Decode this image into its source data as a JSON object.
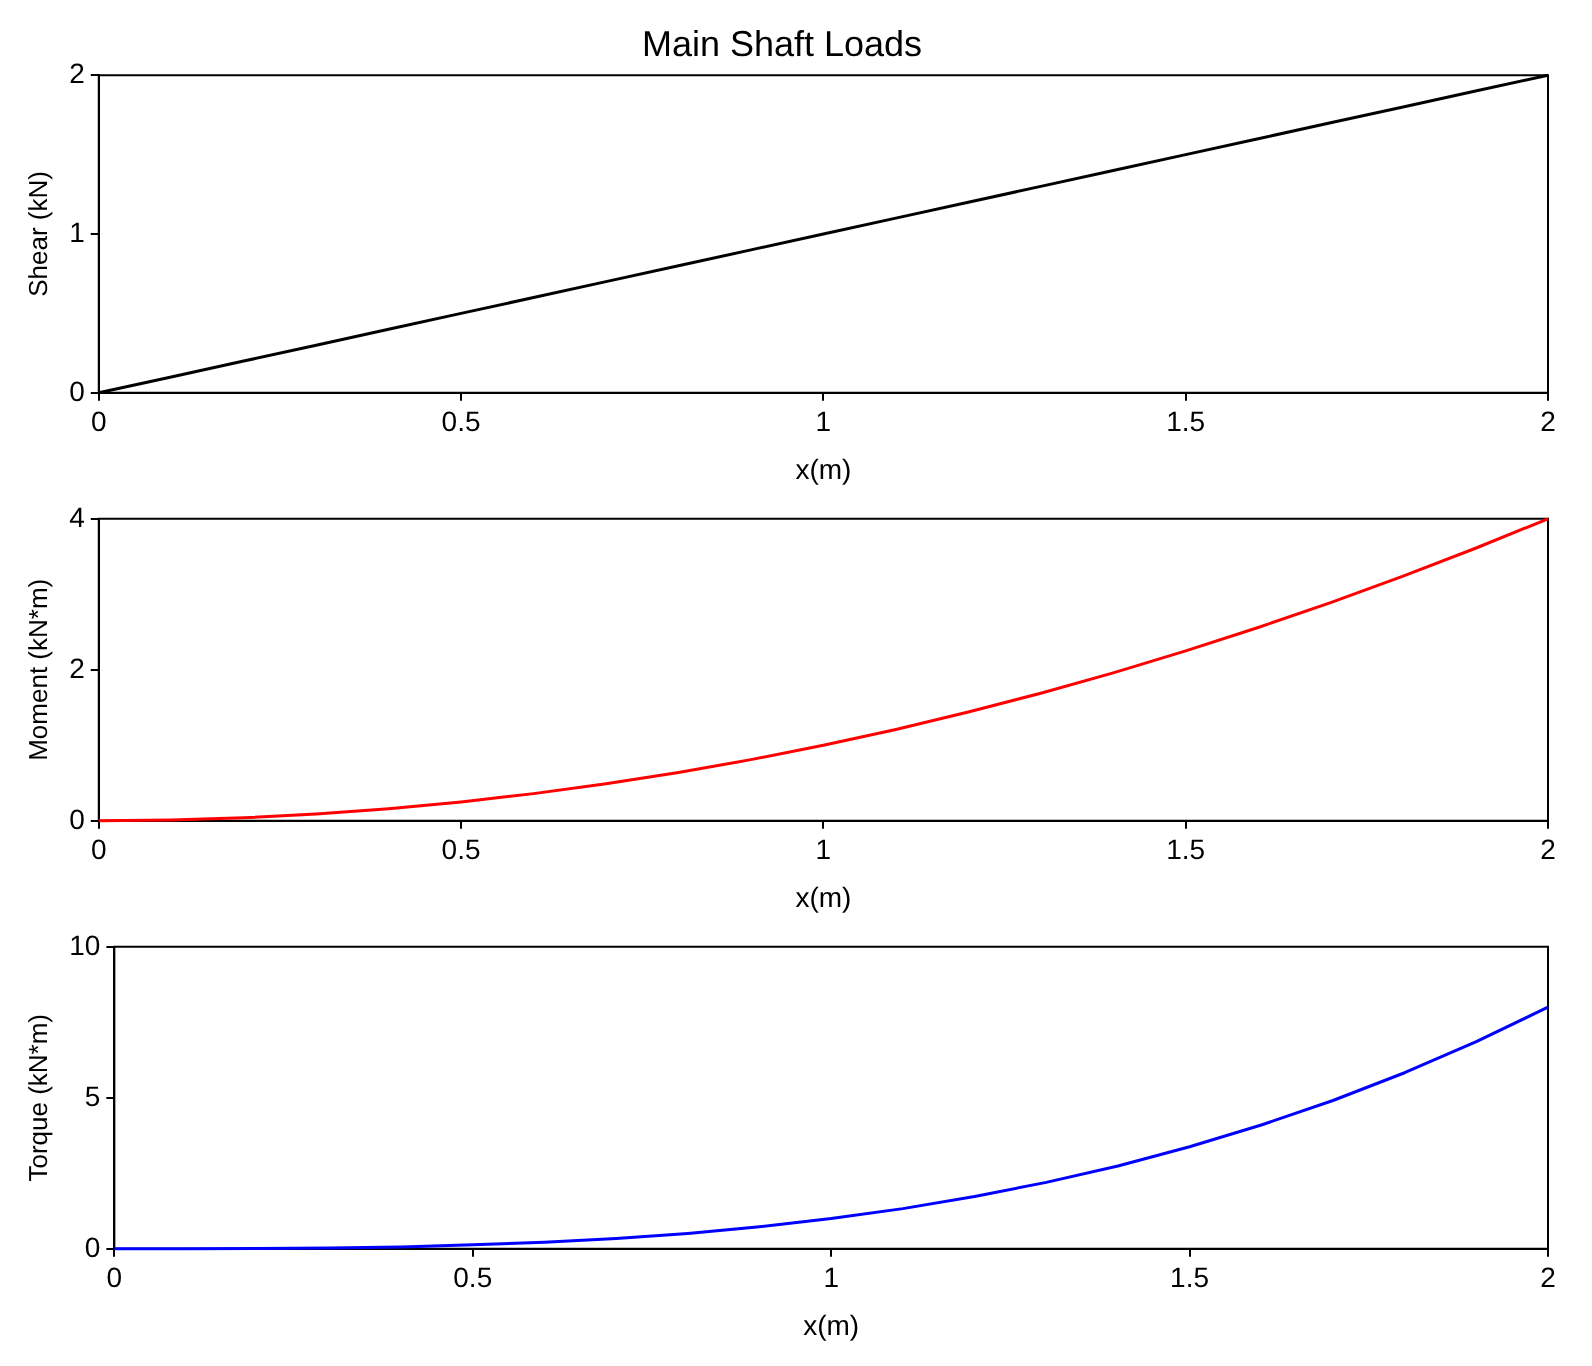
{
  "chart_data": [
    {
      "type": "line",
      "title": "Main Shaft Loads",
      "xlabel": "x(m)",
      "ylabel": "Shear (kN)",
      "x": [
        0,
        0.1,
        0.2,
        0.3,
        0.4,
        0.5,
        0.6,
        0.7,
        0.8,
        0.9,
        1,
        1.1,
        1.2,
        1.3,
        1.4,
        1.5,
        1.6,
        1.7,
        1.8,
        1.9,
        2
      ],
      "series": [
        {
          "color": "#000000",
          "values": [
            0,
            0.1,
            0.2,
            0.3,
            0.4,
            0.5,
            0.6,
            0.7,
            0.8,
            0.9,
            1,
            1.1,
            1.2,
            1.3,
            1.4,
            1.5,
            1.6,
            1.7,
            1.8,
            1.9,
            2
          ]
        }
      ],
      "xlim": [
        0,
        2
      ],
      "xticks": [
        0,
        0.5,
        1,
        1.5,
        2
      ],
      "ylim": [
        0,
        2
      ],
      "yticks": [
        0,
        1,
        2
      ],
      "grid": false,
      "legend": false
    },
    {
      "type": "line",
      "xlabel": "x(m)",
      "ylabel": "Moment (kN*m)",
      "x": [
        0,
        0.1,
        0.2,
        0.3,
        0.4,
        0.5,
        0.6,
        0.7,
        0.8,
        0.9,
        1,
        1.1,
        1.2,
        1.3,
        1.4,
        1.5,
        1.6,
        1.7,
        1.8,
        1.9,
        2
      ],
      "series": [
        {
          "color": "#ff0000",
          "values": [
            0,
            0.01,
            0.04,
            0.09,
            0.16,
            0.25,
            0.36,
            0.49,
            0.64,
            0.81,
            1,
            1.21,
            1.44,
            1.69,
            1.96,
            2.25,
            2.56,
            2.89,
            3.24,
            3.61,
            4
          ]
        }
      ],
      "xlim": [
        0,
        2
      ],
      "xticks": [
        0,
        0.5,
        1,
        1.5,
        2
      ],
      "ylim": [
        0,
        4
      ],
      "yticks": [
        0,
        2,
        4
      ],
      "grid": false,
      "legend": false
    },
    {
      "type": "line",
      "xlabel": "x(m)",
      "ylabel": "Torque (kN*m)",
      "x": [
        0,
        0.1,
        0.2,
        0.3,
        0.4,
        0.5,
        0.6,
        0.7,
        0.8,
        0.9,
        1,
        1.1,
        1.2,
        1.3,
        1.4,
        1.5,
        1.6,
        1.7,
        1.8,
        1.9,
        2
      ],
      "series": [
        {
          "color": "#0000ff",
          "values": [
            0,
            0,
            0.01,
            0.03,
            0.06,
            0.13,
            0.22,
            0.34,
            0.51,
            0.73,
            1,
            1.33,
            1.73,
            2.2,
            2.74,
            3.38,
            4.1,
            4.91,
            5.83,
            6.86,
            8
          ]
        }
      ],
      "xlim": [
        0,
        2
      ],
      "xticks": [
        0,
        0.5,
        1,
        1.5,
        2
      ],
      "ylim": [
        0,
        10
      ],
      "yticks": [
        0,
        5,
        10
      ],
      "grid": false,
      "legend": false
    }
  ]
}
